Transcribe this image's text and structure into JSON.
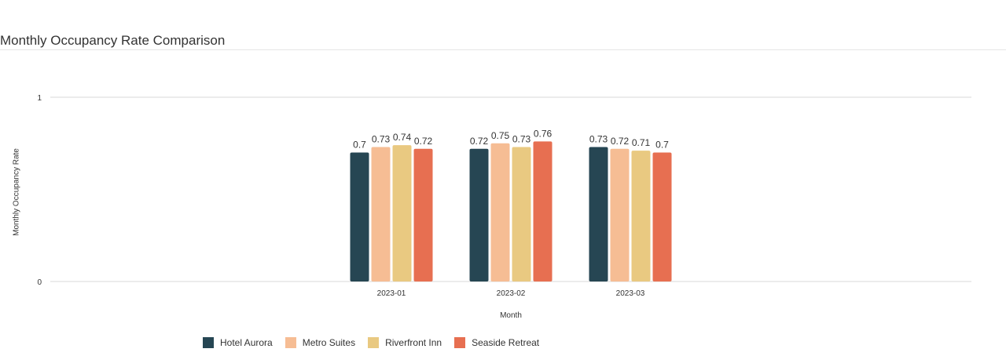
{
  "title": "Monthly Occupancy Rate Comparison",
  "chart_data": {
    "type": "bar",
    "title": "Monthly Occupancy Rate Comparison",
    "xlabel": "Month",
    "ylabel": "Monthly Occupancy Rate",
    "categories": [
      "2023-01",
      "2023-02",
      "2023-03"
    ],
    "series": [
      {
        "name": "Hotel Aurora",
        "color": "#264653",
        "values": [
          0.7,
          0.72,
          0.73
        ]
      },
      {
        "name": "Metro Suites",
        "color": "#f6bd94",
        "values": [
          0.73,
          0.75,
          0.72
        ]
      },
      {
        "name": "Riverfront Inn",
        "color": "#e9c981",
        "values": [
          0.74,
          0.73,
          0.71
        ]
      },
      {
        "name": "Seaside Retreat",
        "color": "#e76f51",
        "values": [
          0.72,
          0.76,
          0.7
        ]
      }
    ],
    "ylim": [
      0,
      1
    ],
    "yticks": [
      "0",
      "1"
    ],
    "grid": true,
    "legend_position": "bottom"
  }
}
